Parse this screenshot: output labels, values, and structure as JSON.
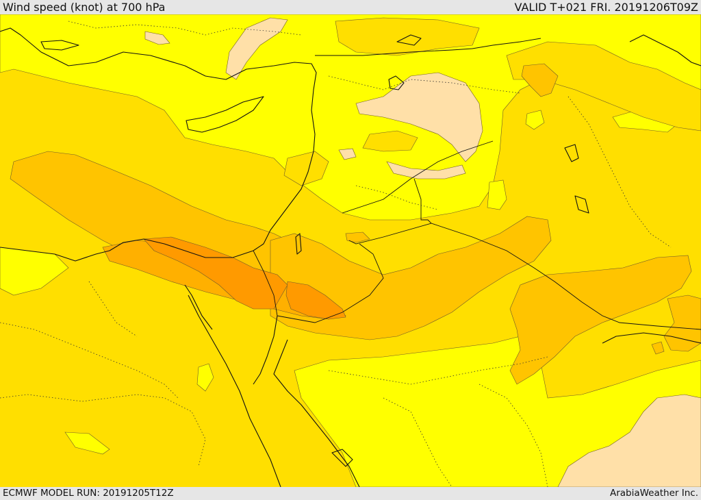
{
  "header": {
    "title": "Wind speed (knot) at 700 hPa",
    "valid": "VALID T+021 FRI. 20191206T09Z"
  },
  "footer": {
    "model_run": "ECMWF MODEL RUN: 20191205T12Z",
    "provider": "ArabiaWeather Inc."
  },
  "colors": {
    "calm": "#ffe0a8",
    "light": "#ffff00",
    "moderate": "#ffdf00",
    "fresh": "#ffc400",
    "strong": "#ffb000",
    "stronger": "#ff9a00",
    "frame": "#e6e6e6"
  }
}
